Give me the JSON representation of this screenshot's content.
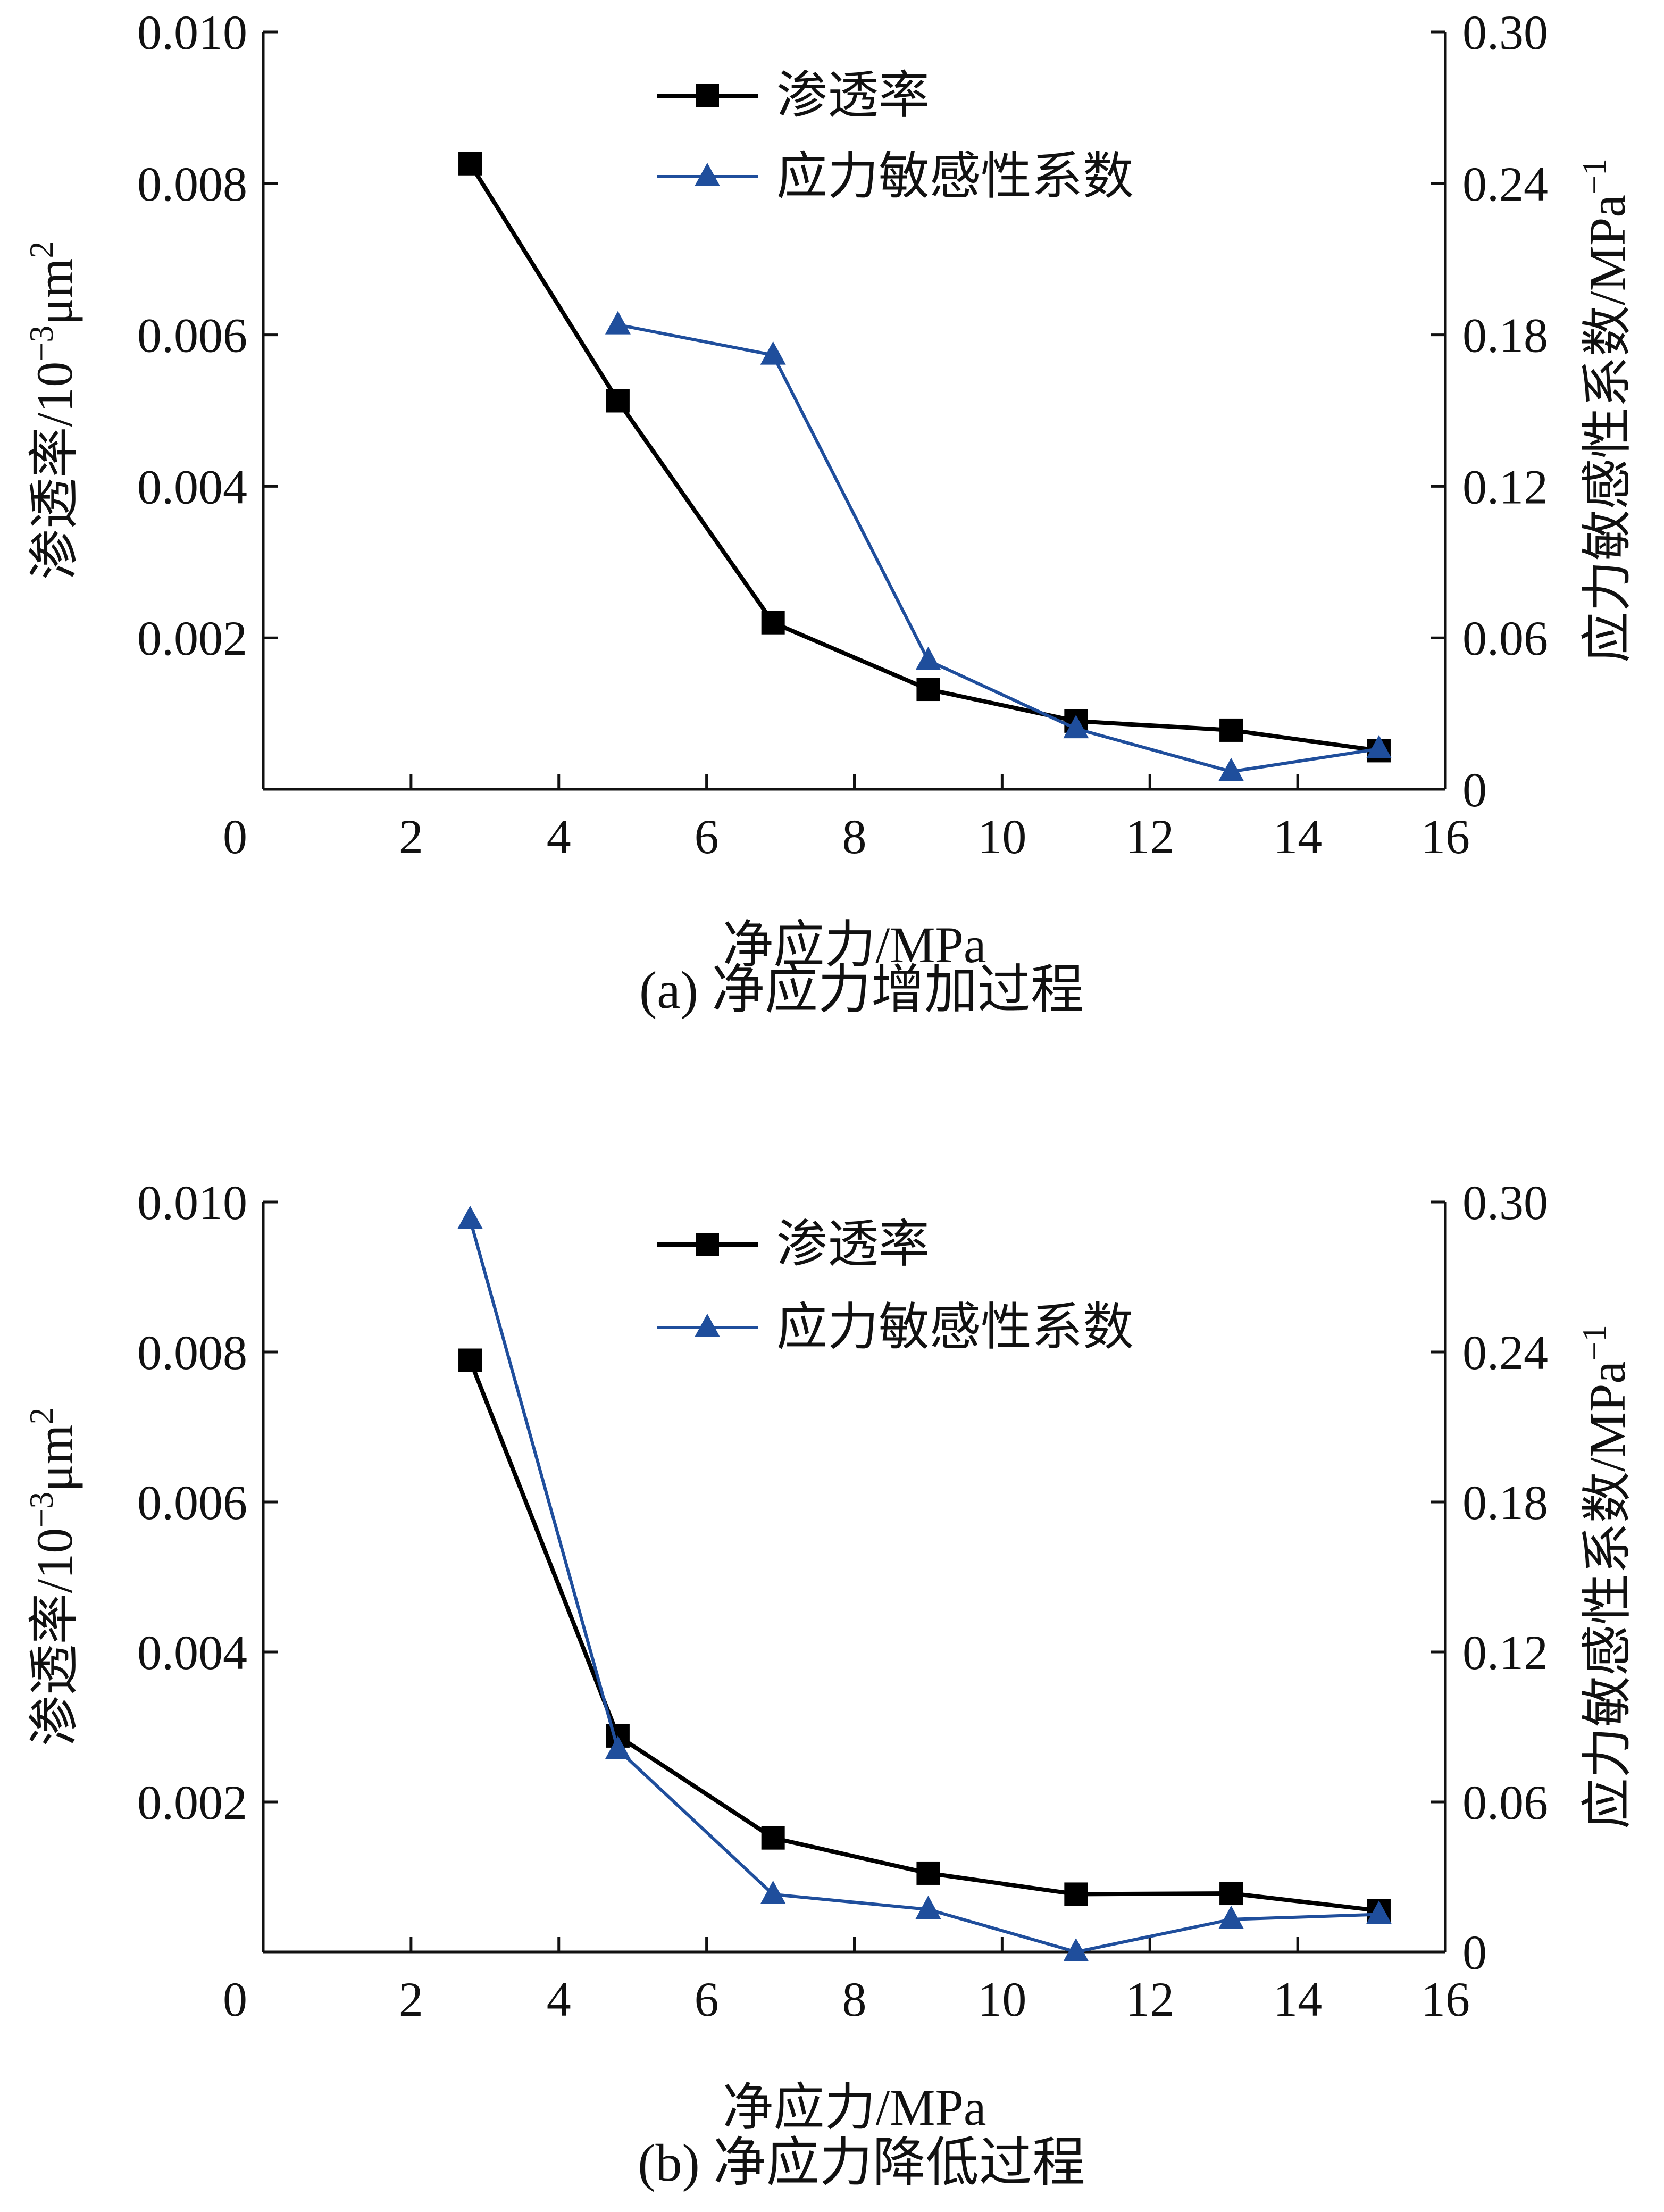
{
  "colors": {
    "permeability": "#000000",
    "sensitivity": "#1f4e9c"
  },
  "chart_data": [
    {
      "type": "line",
      "caption": "(a)  净应力增加过程",
      "xlabel": "净应力/MPa",
      "ylabel_left": "渗透率/10",
      "ylabel_left_sup": "−3",
      "ylabel_left_unit": "μm",
      "ylabel_left_unit_sup": "2",
      "ylabel_right": "应力敏感性系数/MPa",
      "ylabel_right_sup": "−1",
      "xlim": [
        0,
        16
      ],
      "ylim_left": [
        0,
        0.01
      ],
      "ylim_right": [
        0,
        0.3
      ],
      "x_ticks": [
        "0",
        "2",
        "4",
        "6",
        "8",
        "10",
        "12",
        "14",
        "16"
      ],
      "y_left_ticks": [
        "0.002",
        "0.004",
        "0.006",
        "0.008",
        "0.010"
      ],
      "y_right_ticks": [
        "0",
        "0.06",
        "0.12",
        "0.18",
        "0.24",
        "0.30"
      ],
      "legend_position": "top-center",
      "series": [
        {
          "name": "渗透率",
          "axis": "left",
          "marker": "square",
          "x": [
            2.8,
            4.8,
            6.9,
            9.0,
            11.0,
            13.1,
            15.1
          ],
          "y": [
            0.00826,
            0.00513,
            0.0022,
            0.00132,
            0.0009,
            0.00078,
            0.00051
          ]
        },
        {
          "name": "应力敏感性系数",
          "axis": "right",
          "marker": "triangle",
          "x": [
            4.8,
            6.9,
            9.0,
            11.0,
            13.1,
            15.1
          ],
          "y": [
            0.184,
            0.172,
            0.051,
            0.024,
            0.007,
            0.016
          ]
        }
      ]
    },
    {
      "type": "line",
      "caption": "(b)  净应力降低过程",
      "xlabel": "净应力/MPa",
      "ylabel_left": "渗透率/10",
      "ylabel_left_sup": "−3",
      "ylabel_left_unit": "μm",
      "ylabel_left_unit_sup": "2",
      "ylabel_right": "应力敏感性系数/MPa",
      "ylabel_right_sup": "−1",
      "xlim": [
        0,
        16
      ],
      "ylim_left": [
        0,
        0.01
      ],
      "ylim_right": [
        0,
        0.3
      ],
      "x_ticks": [
        "0",
        "2",
        "4",
        "6",
        "8",
        "10",
        "12",
        "14",
        "16"
      ],
      "y_left_ticks": [
        "0.002",
        "0.004",
        "0.006",
        "0.008",
        "0.010"
      ],
      "y_right_ticks": [
        "0",
        "0.06",
        "0.12",
        "0.18",
        "0.24",
        "0.30"
      ],
      "legend_position": "top-center",
      "series": [
        {
          "name": "渗透率",
          "axis": "left",
          "marker": "square",
          "x": [
            2.8,
            4.8,
            6.9,
            9.0,
            11.0,
            13.1,
            15.1
          ],
          "y": [
            0.00789,
            0.00288,
            0.00152,
            0.00105,
            0.00077,
            0.00078,
            0.00055
          ]
        },
        {
          "name": "应力敏感性系数",
          "axis": "right",
          "marker": "triangle",
          "x": [
            2.8,
            4.8,
            6.9,
            9.0,
            11.0,
            13.1,
            15.1
          ],
          "y": [
            0.293,
            0.081,
            0.023,
            0.017,
            0.0,
            0.013,
            0.015
          ]
        }
      ]
    }
  ]
}
